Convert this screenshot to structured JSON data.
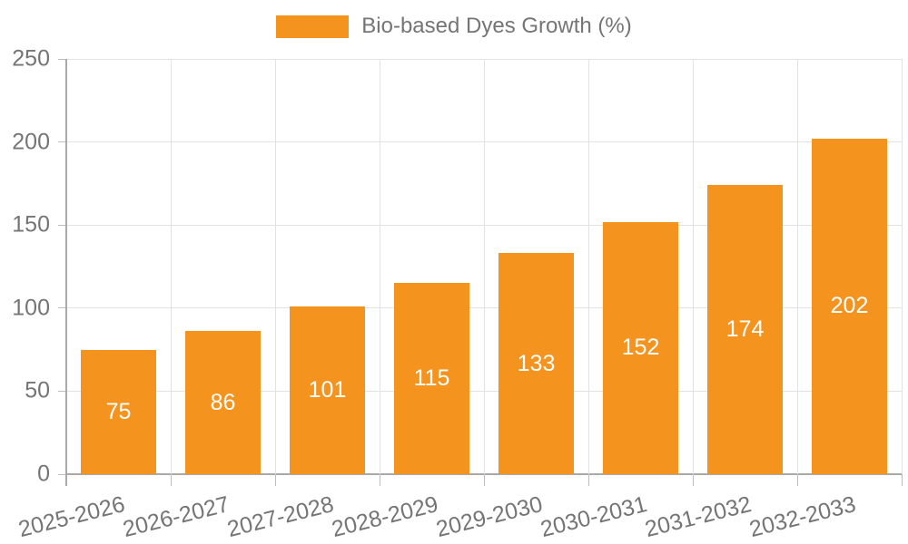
{
  "chart_data": {
    "type": "bar",
    "title": "Bio-based Dyes Growth (%)",
    "legend_position": "top",
    "categories": [
      "2025-2026",
      "2026-2027",
      "2027-2028",
      "2028-2029",
      "2029-2030",
      "2030-2031",
      "2031-2032",
      "2032-2033"
    ],
    "series": [
      {
        "name": "Bio-based Dyes Growth (%)",
        "values": [
          75,
          86,
          101,
          115,
          133,
          152,
          174,
          202
        ]
      }
    ],
    "value_labels": [
      "75",
      "86",
      "101",
      "115",
      "133",
      "152",
      "174",
      "202"
    ],
    "xlabel": "",
    "ylabel": "",
    "ylim": [
      0,
      250
    ],
    "yticks": [
      0,
      50,
      100,
      150,
      200,
      250
    ],
    "grid": true
  },
  "colors": {
    "bar": "#F4931E",
    "grid_light": "#E2E2E2",
    "axis_strong": "#A9A9A9",
    "tick_mark": "#BDBDBD",
    "tick_text": "#757575",
    "value_label": "#FFFFFF",
    "background": "#FFFFFF"
  }
}
